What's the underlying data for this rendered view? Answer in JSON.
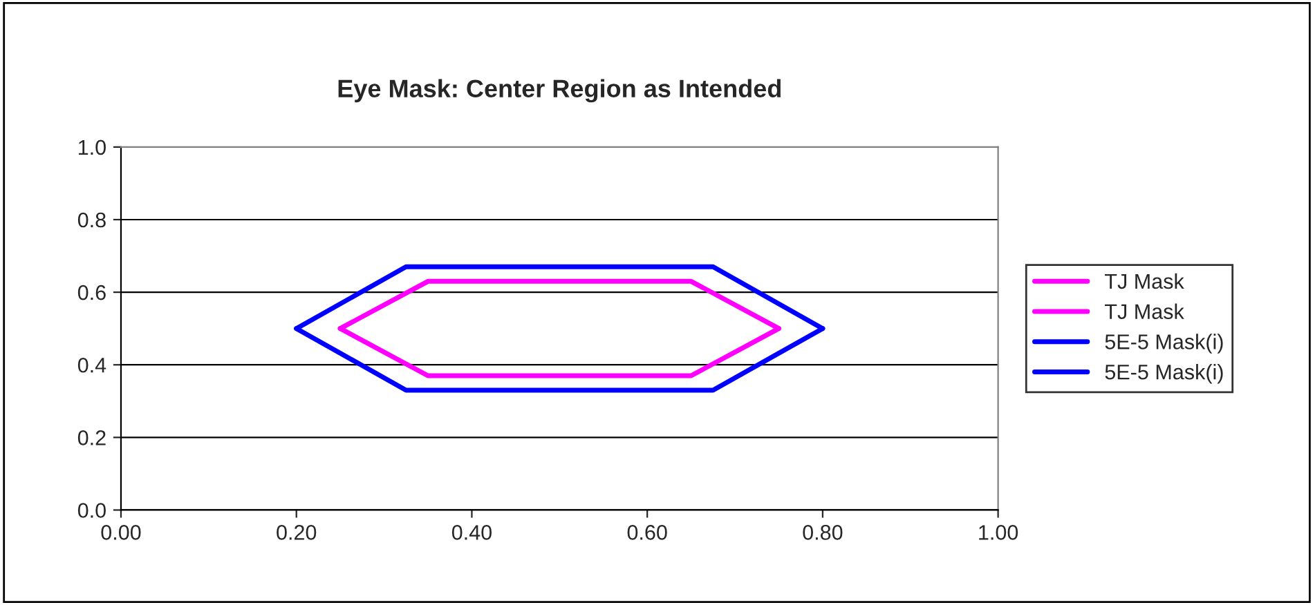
{
  "chart_data": {
    "type": "line",
    "title": "Eye Mask: Center Region as Intended",
    "series": [
      {
        "name": "TJ Mask",
        "color": "#ff00ff",
        "x": [
          0.25,
          0.35,
          0.65,
          0.75
        ],
        "values": [
          0.5,
          0.63,
          0.63,
          0.5
        ]
      },
      {
        "name": "TJ Mask",
        "color": "#ff00ff",
        "x": [
          0.25,
          0.35,
          0.65,
          0.75
        ],
        "values": [
          0.5,
          0.37,
          0.37,
          0.5
        ]
      },
      {
        "name": "5E-5 Mask(i)",
        "color": "#0000ff",
        "x": [
          0.2,
          0.325,
          0.675,
          0.8
        ],
        "values": [
          0.5,
          0.67,
          0.67,
          0.5
        ]
      },
      {
        "name": "5E-5 Mask(i)",
        "color": "#0000ff",
        "x": [
          0.2,
          0.325,
          0.675,
          0.8
        ],
        "values": [
          0.5,
          0.33,
          0.33,
          0.5
        ]
      }
    ],
    "xlim": [
      0,
      1
    ],
    "xticks": [
      {
        "value": 0,
        "label": "0.00"
      },
      {
        "value": 0.2,
        "label": "0.20"
      },
      {
        "value": 0.4,
        "label": "0.40"
      },
      {
        "value": 0.6,
        "label": "0.60"
      },
      {
        "value": 0.8,
        "label": "0.80"
      },
      {
        "value": 1,
        "label": "1.00"
      }
    ],
    "ylim": [
      0,
      1
    ],
    "yticks": [
      {
        "value": 0,
        "label": "0.0"
      },
      {
        "value": 0.2,
        "label": "0.2"
      },
      {
        "value": 0.4,
        "label": "0.4"
      },
      {
        "value": 0.6,
        "label": "0.6"
      },
      {
        "value": 0.8,
        "label": "0.8"
      },
      {
        "value": 1,
        "label": "1.0"
      }
    ],
    "grid": "y",
    "legend": "right",
    "marker": "none",
    "line_style": "solid"
  }
}
